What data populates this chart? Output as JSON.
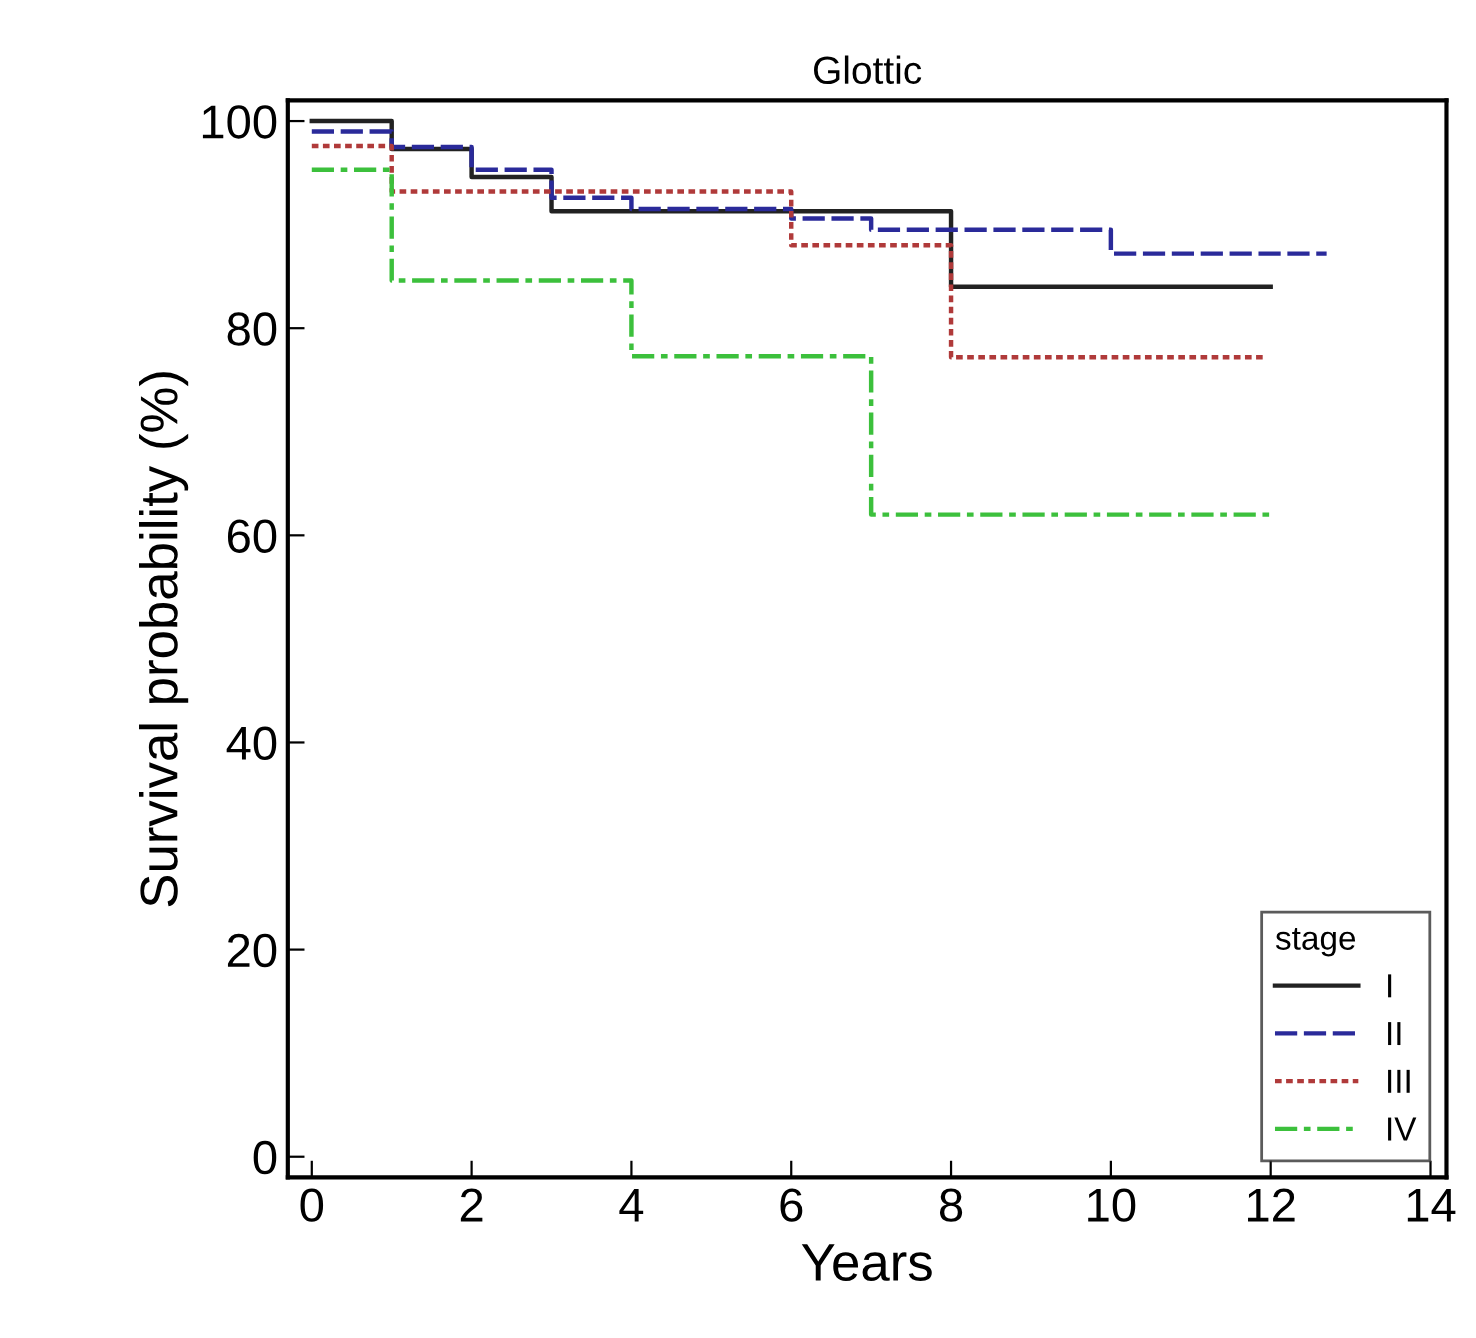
{
  "chart_data": {
    "type": "step",
    "title": "Glottic",
    "xlabel": "Years",
    "ylabel": "Survival probability (%)",
    "legend_title": "stage",
    "legend": "bottom right",
    "grid": false,
    "xlim": [
      -0.3,
      14.2
    ],
    "xticks": [
      0,
      2,
      4,
      6,
      8,
      10,
      12,
      14
    ],
    "ylim": [
      -2,
      102
    ],
    "yticks": [
      0,
      20,
      40,
      60,
      80,
      100
    ],
    "series": [
      {
        "name": "I",
        "color": "#222222",
        "line_style": "solid",
        "x": [
          0,
          1,
          2,
          3,
          8,
          12
        ],
        "values": [
          100,
          97.3,
          94.6,
          91.3,
          84,
          84
        ]
      },
      {
        "name": "II",
        "color": "#2a2a9a",
        "line_style": "dashed",
        "x": [
          0,
          1,
          2,
          3,
          4,
          6,
          7,
          10,
          12.7
        ],
        "values": [
          99,
          97.5,
          95.3,
          92.6,
          91.5,
          90.6,
          89.5,
          87.2,
          87.2
        ]
      },
      {
        "name": "III",
        "color": "#b03a3a",
        "line_style": "dotted",
        "x": [
          0,
          1,
          6,
          8,
          11.9
        ],
        "values": [
          97.6,
          93.2,
          88,
          77.2,
          77.2
        ]
      },
      {
        "name": "IV",
        "color": "#3cc03c",
        "line_style": "dashdot",
        "x": [
          0,
          1,
          4,
          7,
          12
        ],
        "values": [
          95.3,
          84.6,
          77.3,
          62,
          62
        ]
      }
    ]
  }
}
